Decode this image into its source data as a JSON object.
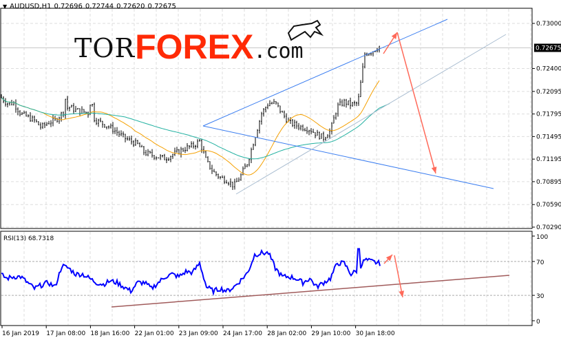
{
  "header": {
    "symbol": "AUDUSD,H1",
    "open": "0.72696",
    "high": "0.72744",
    "low": "0.72620",
    "close": "0.72675"
  },
  "logo": {
    "text1": "TOR",
    "text2": "FOREX",
    "text3": ".com",
    "icon": "bull-icon"
  },
  "colors": {
    "bars": "#000000",
    "ma_fast": "#f5a000",
    "ma_slow": "#20b0a0",
    "trend_blue": "#3a7df0",
    "trend_gray": "#a8bcd0",
    "arrows": "#ff6a5a",
    "rsi": "#0000ff",
    "rsi_trend": "#a05a5a"
  },
  "chart_data": [
    {
      "type": "line",
      "name": "price",
      "ylim": [
        0.7029,
        0.73
      ],
      "y_ticks": [
        "0.73000",
        "0.72400",
        "0.72095",
        "0.71795",
        "0.71495",
        "0.71195",
        "0.70895",
        "0.70590",
        "0.70290"
      ],
      "current_price": "0.72675",
      "closes": [
        0.72029,
        0.71938,
        0.71938,
        0.71801,
        0.71755,
        0.71709,
        0.71617,
        0.71682,
        0.71709,
        0.71801,
        0.71892,
        0.71846,
        0.71828,
        0.71801,
        0.71709,
        0.71663,
        0.71617,
        0.71553,
        0.7148,
        0.71434,
        0.71389,
        0.71279,
        0.71251,
        0.71224,
        0.71205,
        0.71251,
        0.71297,
        0.71343,
        0.7137,
        0.71434,
        0.7116,
        0.71022,
        0.70949,
        0.70912,
        0.70839,
        0.70977,
        0.7116,
        0.7148,
        0.71801,
        0.71938,
        0.71938,
        0.71801,
        0.71682,
        0.71645,
        0.71617,
        0.7159,
        0.71526,
        0.7148,
        0.71571,
        0.71892,
        0.71956,
        0.7192,
        0.71938,
        0.72597,
        0.72625,
        0.72689
      ]
    },
    {
      "type": "line",
      "name": "RSI(13)",
      "label": "RSI(13) 68.7318",
      "ylim": [
        0,
        100
      ],
      "y_ticks": [
        "100",
        "70",
        "30",
        "0"
      ],
      "values": [
        55,
        50,
        52,
        52,
        45,
        38,
        42,
        45,
        40,
        65,
        62,
        55,
        55,
        50,
        45,
        43,
        47,
        45,
        40,
        35,
        45,
        45,
        38,
        45,
        52,
        55,
        52,
        58,
        57,
        68,
        40,
        35,
        38,
        35,
        40,
        48,
        57,
        78,
        80,
        80,
        62,
        52,
        52,
        50,
        45,
        50,
        40,
        45,
        50,
        68,
        68,
        55,
        60,
        72,
        70,
        68
      ]
    }
  ],
  "x_ticks": [
    "16 Jan 2019",
    "17 Jan 08:00",
    "18 Jan 16:00",
    "22 Jan 01:00",
    "23 Jan 09:00",
    "24 Jan 17:00",
    "28 Jan 02:00",
    "29 Jan 10:00",
    "30 Jan 18:00"
  ]
}
